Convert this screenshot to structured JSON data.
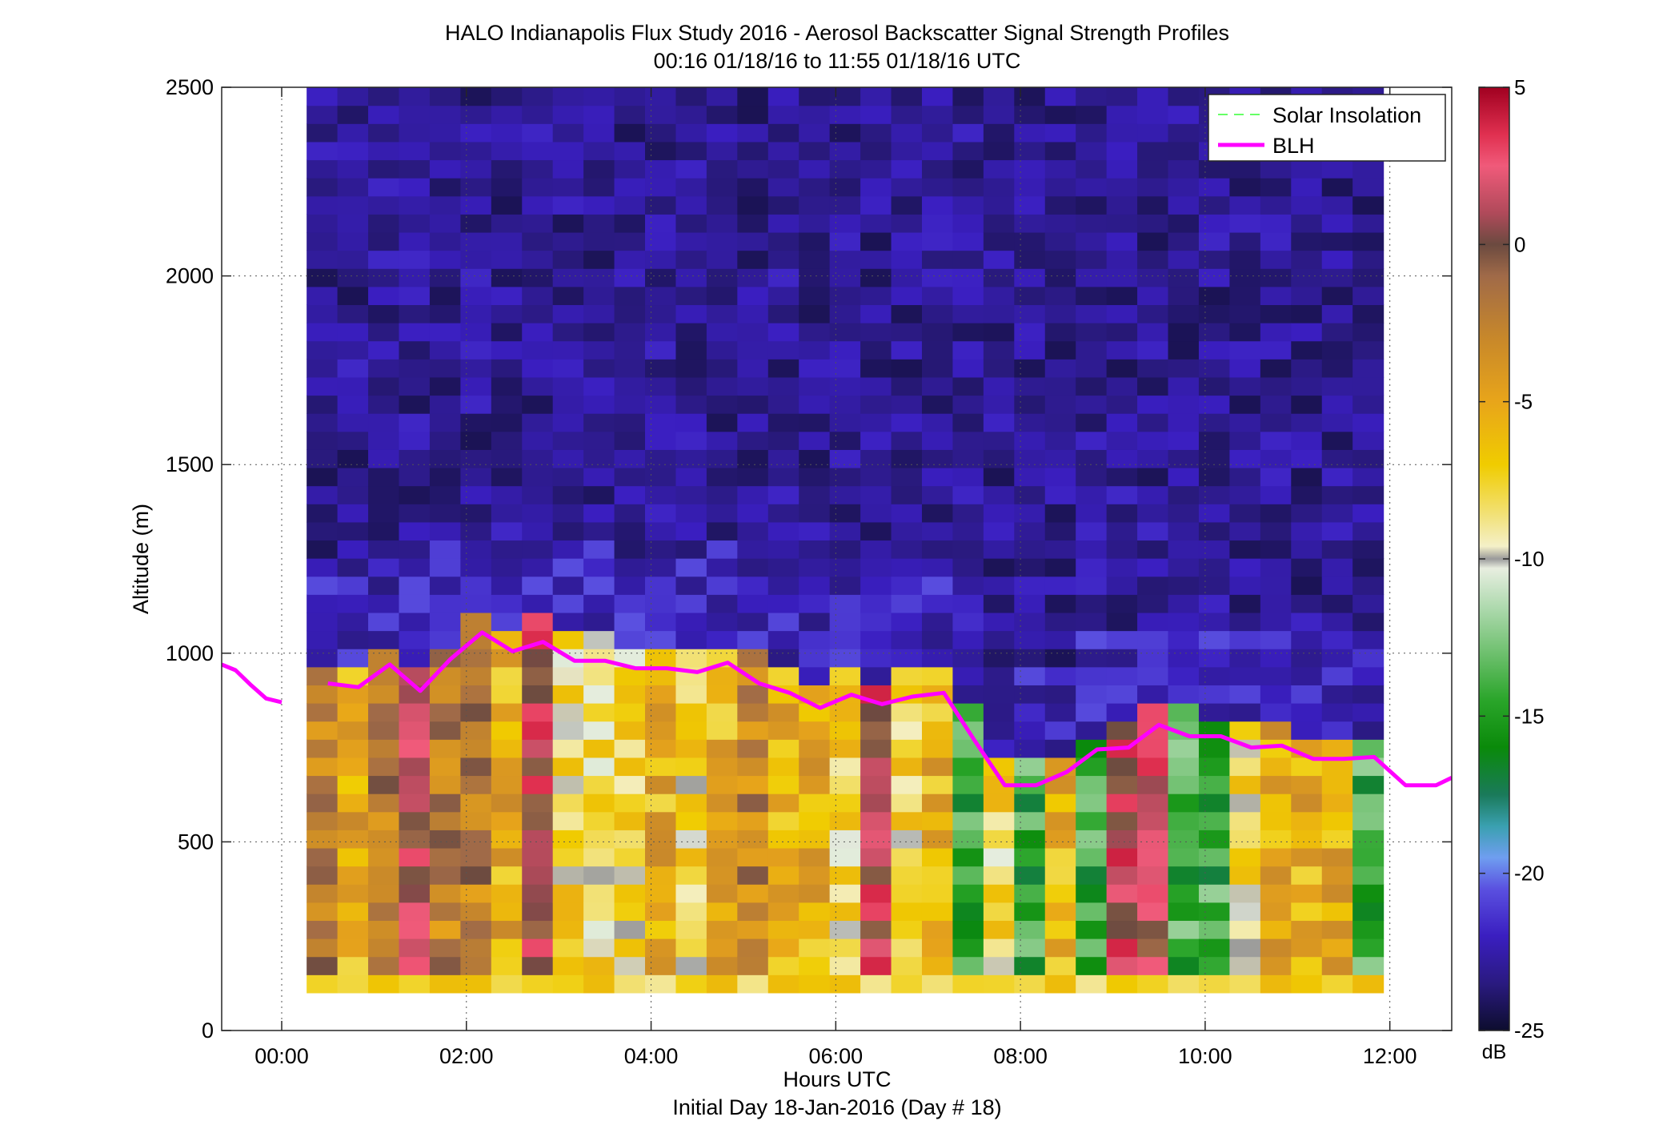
{
  "chart_data": {
    "type": "heatmap",
    "title": "HALO Indianapolis Flux Study 2016 - Aerosol Backscatter Signal Strength Profiles",
    "subtitle": "00:16 01/18/16 to 11:55 01/18/16  UTC",
    "xlabel": "Hours UTC",
    "xlabel2": "Initial Day 18-Jan-2016 (Day # 18)",
    "ylabel": "Altitude (m)",
    "xlim": [
      -0.65,
      12.67
    ],
    "ylim": [
      0,
      2500
    ],
    "x_ticks": [
      0,
      2,
      4,
      6,
      8,
      10,
      12
    ],
    "x_tick_labels": [
      "00:00",
      "02:00",
      "04:00",
      "06:00",
      "08:00",
      "10:00",
      "12:00"
    ],
    "y_ticks": [
      0,
      500,
      1000,
      1500,
      2000,
      2500
    ],
    "y_tick_labels": [
      "0",
      "500",
      "1000",
      "1500",
      "2000",
      "2500"
    ],
    "grid": true,
    "legend_position": "top-right",
    "legend": [
      {
        "label": "Solar Insolation",
        "color": "#66ff66",
        "style": "dashed"
      },
      {
        "label": "BLH",
        "color": "#ff00ff",
        "style": "solid"
      }
    ],
    "colorbar": {
      "label": "dB",
      "range": [
        -25,
        5
      ],
      "ticks": [
        5,
        0,
        -5,
        -10,
        -15,
        -20,
        -25
      ],
      "tick_labels": [
        "5",
        "0",
        "-5",
        "-10",
        "-15",
        "-20",
        "-25"
      ],
      "colormap": [
        [
          -25,
          "#0d0d2e"
        ],
        [
          -23.5,
          "#2a1a80"
        ],
        [
          -22,
          "#3a1ec0"
        ],
        [
          -20.5,
          "#5a50e0"
        ],
        [
          -19.5,
          "#6f9ef0"
        ],
        [
          -18.5,
          "#3aa0b0"
        ],
        [
          -17.5,
          "#1a7a5a"
        ],
        [
          -16,
          "#0a8a0a"
        ],
        [
          -14.5,
          "#2aa52a"
        ],
        [
          -13,
          "#6ec06e"
        ],
        [
          -11.5,
          "#b0dab0"
        ],
        [
          -10.3,
          "#e8eee0"
        ],
        [
          -10,
          "#9a9a9a"
        ],
        [
          -9.6,
          "#f4f0c8"
        ],
        [
          -8.5,
          "#f2e070"
        ],
        [
          -7,
          "#f0cc00"
        ],
        [
          -5,
          "#e8a51a"
        ],
        [
          -3,
          "#c8882a"
        ],
        [
          -1,
          "#a06a48"
        ],
        [
          0,
          "#6b4a40"
        ],
        [
          1,
          "#b04a5a"
        ],
        [
          2.5,
          "#f05a7a"
        ],
        [
          3.5,
          "#e03050"
        ],
        [
          5,
          "#a00020"
        ]
      ]
    },
    "heatmap": {
      "x_start": 0.27,
      "x_end": 11.93,
      "y_start": 100,
      "y_end": 2500,
      "n_cols": 35,
      "n_rows": 50
    },
    "blh_series": {
      "name": "BLH",
      "x": [
        -0.65,
        -0.5,
        -0.33,
        -0.17,
        0,
        0.17,
        0.5,
        0.83,
        1.17,
        1.5,
        1.83,
        2.17,
        2.5,
        2.83,
        3.17,
        3.5,
        3.83,
        4.17,
        4.5,
        4.83,
        5.17,
        5.5,
        5.83,
        6.17,
        6.5,
        6.83,
        7.17,
        7.5,
        7.83,
        8.17,
        8.5,
        8.83,
        9.17,
        9.5,
        9.83,
        10.17,
        10.5,
        10.83,
        11.17,
        11.5,
        11.83,
        12.17,
        12.5,
        12.67
      ],
      "y": [
        970,
        955,
        915,
        880,
        870,
        null,
        920,
        910,
        970,
        900,
        985,
        1055,
        1005,
        1030,
        980,
        980,
        960,
        960,
        950,
        975,
        920,
        895,
        855,
        890,
        865,
        885,
        895,
        770,
        650,
        650,
        685,
        745,
        750,
        810,
        780,
        780,
        750,
        755,
        720,
        720,
        725,
        650,
        650,
        670
      ]
    },
    "solar_insolation_series": {
      "name": "Solar Insolation",
      "x": [],
      "y": []
    }
  }
}
